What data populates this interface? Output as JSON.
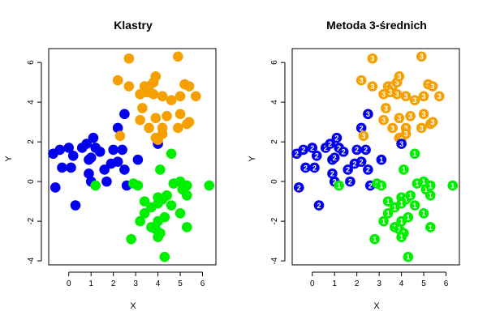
{
  "colors": {
    "cluster_1": "#00ee00",
    "cluster_2": "#0000ee",
    "cluster_3": "#f5a000",
    "axis": "#000000",
    "background": "#ffffff"
  },
  "chart_data": [
    {
      "type": "scatter",
      "title": "Klastry",
      "xlabel": "X",
      "ylabel": "Y",
      "xlim": [
        -0.9,
        6.6
      ],
      "ylim": [
        -4.2,
        6.7
      ],
      "xticks": [
        0,
        1,
        2,
        3,
        4,
        5,
        6
      ],
      "yticks": [
        -4,
        -2,
        0,
        2,
        4,
        6
      ],
      "grid": false,
      "legend": "none",
      "show_point_labels": false,
      "series": [
        {
          "cluster": 2,
          "color": "#0000ee",
          "points": [
            [
              -0.7,
              1.4
            ],
            [
              -0.4,
              1.6
            ],
            [
              -0.3,
              0.7
            ],
            [
              0.1,
              0.7
            ],
            [
              0.0,
              1.7
            ],
            [
              0.2,
              1.3
            ],
            [
              0.6,
              1.7
            ],
            [
              0.8,
              1.9
            ],
            [
              0.9,
              1.1
            ],
            [
              1.0,
              1.2
            ],
            [
              1.2,
              1.7
            ],
            [
              1.1,
              2.2
            ],
            [
              1.4,
              1.5
            ],
            [
              2.0,
              1.6
            ],
            [
              2.2,
              2.7
            ],
            [
              2.4,
              1.6
            ],
            [
              1.6,
              0.6
            ],
            [
              1.9,
              0.9
            ],
            [
              2.2,
              1.0
            ],
            [
              2.5,
              3.4
            ],
            [
              2.5,
              0.6
            ],
            [
              0.9,
              0.4
            ],
            [
              1.7,
              0.0
            ],
            [
              2.6,
              -0.2
            ],
            [
              -0.6,
              -0.3
            ],
            [
              0.3,
              -1.2
            ],
            [
              3.1,
              1.1
            ],
            [
              4.0,
              1.9
            ],
            [
              1.0,
              0.0
            ]
          ]
        },
        {
          "cluster": 3,
          "color": "#f5a000",
          "points": [
            [
              2.7,
              6.2
            ],
            [
              4.9,
              6.3
            ],
            [
              2.2,
              5.1
            ],
            [
              2.7,
              4.8
            ],
            [
              3.4,
              4.8
            ],
            [
              3.6,
              4.8
            ],
            [
              3.8,
              5.0
            ],
            [
              3.9,
              5.3
            ],
            [
              3.2,
              4.4
            ],
            [
              3.5,
              4.5
            ],
            [
              3.8,
              4.4
            ],
            [
              4.2,
              4.3
            ],
            [
              4.6,
              4.1
            ],
            [
              5.0,
              4.3
            ],
            [
              5.2,
              4.9
            ],
            [
              5.4,
              4.8
            ],
            [
              5.7,
              4.3
            ],
            [
              3.3,
              3.7
            ],
            [
              3.2,
              3.1
            ],
            [
              3.9,
              3.2
            ],
            [
              4.4,
              3.3
            ],
            [
              5.0,
              3.4
            ],
            [
              3.6,
              2.7
            ],
            [
              4.2,
              2.7
            ],
            [
              4.9,
              2.7
            ],
            [
              5.3,
              2.9
            ],
            [
              5.4,
              3.0
            ],
            [
              2.3,
              2.3
            ],
            [
              3.9,
              2.2
            ],
            [
              4.2,
              2.4
            ],
            [
              4.0,
              2.1
            ]
          ]
        },
        {
          "cluster": 1,
          "color": "#00ee00",
          "points": [
            [
              1.2,
              -0.2
            ],
            [
              2.9,
              -0.1
            ],
            [
              3.1,
              -0.2
            ],
            [
              4.1,
              0.6
            ],
            [
              4.6,
              1.4
            ],
            [
              4.7,
              -0.1
            ],
            [
              5.0,
              0.0
            ],
            [
              5.1,
              -0.4
            ],
            [
              5.3,
              -0.2
            ],
            [
              6.3,
              -0.2
            ],
            [
              5.3,
              -0.7
            ],
            [
              3.4,
              -1.0
            ],
            [
              4.0,
              -0.8
            ],
            [
              4.2,
              -0.9
            ],
            [
              4.4,
              -0.7
            ],
            [
              4.0,
              -1.1
            ],
            [
              3.4,
              -1.6
            ],
            [
              3.7,
              -1.3
            ],
            [
              4.3,
              -1.8
            ],
            [
              4.6,
              -1.2
            ],
            [
              5.0,
              -1.6
            ],
            [
              3.2,
              -2.0
            ],
            [
              3.7,
              -2.3
            ],
            [
              4.0,
              -2.0
            ],
            [
              3.9,
              -2.4
            ],
            [
              4.1,
              -2.6
            ],
            [
              4.0,
              -2.8
            ],
            [
              2.8,
              -2.9
            ],
            [
              5.3,
              -2.3
            ],
            [
              4.3,
              -3.8
            ]
          ]
        }
      ]
    },
    {
      "type": "scatter",
      "title": "Metoda 3-średnich",
      "xlabel": "X",
      "ylabel": "Y",
      "xlim": [
        -0.9,
        6.6
      ],
      "ylim": [
        -4.2,
        6.7
      ],
      "xticks": [
        0,
        1,
        2,
        3,
        4,
        5,
        6
      ],
      "yticks": [
        -4,
        -2,
        0,
        2,
        4,
        6
      ],
      "grid": false,
      "legend": "none",
      "show_point_labels": true,
      "series": [
        {
          "cluster": 2,
          "label": "2",
          "color": "#0000ee",
          "points": [
            [
              -0.7,
              1.4
            ],
            [
              -0.4,
              1.6
            ],
            [
              -0.3,
              0.7
            ],
            [
              0.1,
              0.7
            ],
            [
              0.0,
              1.7
            ],
            [
              0.2,
              1.3
            ],
            [
              0.6,
              1.7
            ],
            [
              0.8,
              1.9
            ],
            [
              0.9,
              1.1
            ],
            [
              1.0,
              1.2
            ],
            [
              1.2,
              1.7
            ],
            [
              1.1,
              2.2
            ],
            [
              1.4,
              1.5
            ],
            [
              2.0,
              1.6
            ],
            [
              2.2,
              2.7
            ],
            [
              2.4,
              1.6
            ],
            [
              1.6,
              0.6
            ],
            [
              1.9,
              0.9
            ],
            [
              2.2,
              1.0
            ],
            [
              2.5,
              0.6
            ],
            [
              0.9,
              0.4
            ],
            [
              1.7,
              0.0
            ],
            [
              2.6,
              -0.2
            ],
            [
              -0.6,
              -0.3
            ],
            [
              0.3,
              -1.2
            ],
            [
              1.0,
              0.0
            ]
          ]
        },
        {
          "cluster": 3,
          "label": "3",
          "color": "#f5a000",
          "points": [
            [
              2.7,
              6.2
            ],
            [
              4.9,
              6.3
            ],
            [
              2.2,
              5.1
            ],
            [
              2.7,
              4.8
            ],
            [
              3.4,
              4.8
            ],
            [
              3.6,
              4.8
            ],
            [
              3.8,
              5.0
            ],
            [
              3.9,
              5.3
            ],
            [
              3.2,
              4.4
            ],
            [
              3.5,
              4.5
            ],
            [
              3.8,
              4.4
            ],
            [
              4.2,
              4.3
            ],
            [
              4.6,
              4.1
            ],
            [
              5.0,
              4.3
            ],
            [
              5.2,
              4.9
            ],
            [
              5.4,
              4.8
            ],
            [
              5.7,
              4.3
            ],
            [
              3.3,
              3.7
            ],
            [
              3.2,
              3.1
            ],
            [
              3.9,
              3.2
            ],
            [
              4.4,
              3.3
            ],
            [
              5.0,
              3.4
            ],
            [
              3.6,
              2.7
            ],
            [
              4.2,
              2.7
            ],
            [
              4.9,
              2.7
            ],
            [
              5.3,
              2.9
            ],
            [
              5.4,
              3.0
            ],
            [
              2.3,
              2.3
            ],
            [
              3.9,
              2.2
            ],
            [
              4.2,
              2.4
            ],
            [
              4.0,
              2.1
            ]
          ]
        },
        {
          "cluster": 3,
          "label": "3",
          "color": "#0000ee",
          "points": [
            [
              2.5,
              3.4
            ],
            [
              4.0,
              1.9
            ]
          ]
        },
        {
          "cluster": 1,
          "label": "1",
          "color": "#0000ee",
          "points": [
            [
              3.1,
              1.1
            ]
          ]
        },
        {
          "cluster": 1,
          "label": "1",
          "color": "#00ee00",
          "points": [
            [
              1.2,
              -0.2
            ],
            [
              2.9,
              -0.1
            ],
            [
              3.1,
              -0.2
            ],
            [
              4.1,
              0.6
            ],
            [
              4.6,
              1.4
            ],
            [
              4.7,
              -0.1
            ],
            [
              5.0,
              0.0
            ],
            [
              5.1,
              -0.4
            ],
            [
              5.3,
              -0.2
            ],
            [
              6.3,
              -0.2
            ],
            [
              5.3,
              -0.7
            ],
            [
              3.4,
              -1.0
            ],
            [
              4.0,
              -0.8
            ],
            [
              4.2,
              -0.9
            ],
            [
              4.4,
              -0.7
            ],
            [
              4.0,
              -1.1
            ],
            [
              3.4,
              -1.6
            ],
            [
              3.7,
              -1.3
            ],
            [
              4.3,
              -1.8
            ],
            [
              4.6,
              -1.2
            ],
            [
              5.0,
              -1.6
            ],
            [
              3.2,
              -2.0
            ],
            [
              3.7,
              -2.3
            ],
            [
              4.0,
              -2.0
            ],
            [
              3.9,
              -2.4
            ],
            [
              4.1,
              -2.6
            ],
            [
              4.0,
              -2.8
            ],
            [
              2.8,
              -2.9
            ],
            [
              5.3,
              -2.3
            ],
            [
              4.3,
              -3.8
            ]
          ]
        }
      ]
    }
  ]
}
